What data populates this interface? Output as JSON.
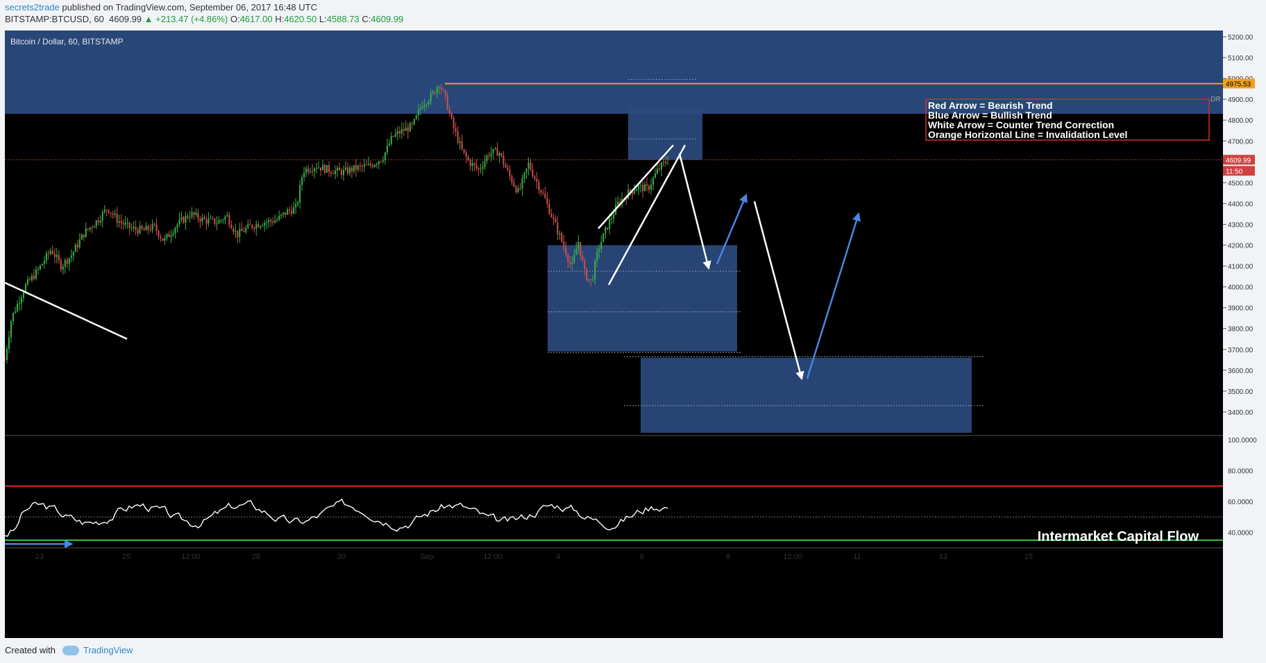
{
  "header": {
    "user": "secrets2trade",
    "published_text": " published on TradingView.com, September 06, 2017 16:48 UTC",
    "symbol": "BITSTAMP:BTCUSD, 60",
    "last": "4609.99",
    "change": "▲ +213.47 (+4.86%)",
    "open_label": "O:",
    "open": "4617.00",
    "high_label": "H:",
    "high": "4620.50",
    "low_label": "L:",
    "low": "4588.73",
    "close_label": "C:",
    "close": "4609.99"
  },
  "chart_data": {
    "type": "candlestick",
    "title": "Bitcoin / Dollar, 60, BITSTAMP",
    "ylim": [
      3300,
      5230
    ],
    "y_ticks": [
      "5200.00",
      "5100.00",
      "5000.00",
      "4900.00",
      "4800.00",
      "4700.00",
      "4600.00",
      "4500.00",
      "4400.00",
      "4300.00",
      "4200.00",
      "4100.00",
      "4000.00",
      "3900.00",
      "3800.00",
      "3700.00",
      "3600.00",
      "3500.00",
      "3400.00"
    ],
    "x_ticks": [
      "23",
      "25",
      "12:00",
      "28",
      "30",
      "Sep",
      "12:00",
      "4",
      "6",
      "8",
      "12:00",
      "11",
      "13",
      "15"
    ],
    "price_trace": [
      [
        0,
        3650
      ],
      [
        0.01,
        3850
      ],
      [
        0.03,
        4000
      ],
      [
        0.05,
        4080
      ],
      [
        0.07,
        4180
      ],
      [
        0.085,
        4100
      ],
      [
        0.1,
        4150
      ],
      [
        0.12,
        4260
      ],
      [
        0.14,
        4320
      ],
      [
        0.155,
        4380
      ],
      [
        0.17,
        4320
      ],
      [
        0.19,
        4280
      ],
      [
        0.21,
        4270
      ],
      [
        0.225,
        4290
      ],
      [
        0.24,
        4220
      ],
      [
        0.26,
        4300
      ],
      [
        0.28,
        4350
      ],
      [
        0.3,
        4320
      ],
      [
        0.32,
        4310
      ],
      [
        0.335,
        4340
      ],
      [
        0.35,
        4250
      ],
      [
        0.37,
        4290
      ],
      [
        0.39,
        4310
      ],
      [
        0.41,
        4320
      ],
      [
        0.425,
        4360
      ],
      [
        0.44,
        4380
      ],
      [
        0.45,
        4560
      ],
      [
        0.47,
        4580
      ],
      [
        0.49,
        4560
      ],
      [
        0.51,
        4550
      ],
      [
        0.53,
        4570
      ],
      [
        0.55,
        4580
      ],
      [
        0.57,
        4620
      ],
      [
        0.585,
        4720
      ],
      [
        0.6,
        4750
      ],
      [
        0.615,
        4770
      ],
      [
        0.63,
        4880
      ],
      [
        0.645,
        4920
      ],
      [
        0.655,
        4980
      ],
      [
        0.665,
        4900
      ],
      [
        0.675,
        4780
      ],
      [
        0.69,
        4650
      ],
      [
        0.7,
        4600
      ],
      [
        0.715,
        4560
      ],
      [
        0.73,
        4640
      ],
      [
        0.745,
        4650
      ],
      [
        0.76,
        4540
      ],
      [
        0.775,
        4450
      ],
      [
        0.79,
        4590
      ],
      [
        0.8,
        4520
      ],
      [
        0.815,
        4420
      ],
      [
        0.83,
        4300
      ],
      [
        0.845,
        4180
      ],
      [
        0.855,
        4090
      ],
      [
        0.865,
        4220
      ],
      [
        0.875,
        4060
      ],
      [
        0.885,
        4020
      ],
      [
        0.895,
        4180
      ],
      [
        0.91,
        4300
      ],
      [
        0.925,
        4400
      ],
      [
        0.94,
        4450
      ],
      [
        0.955,
        4480
      ],
      [
        0.97,
        4470
      ],
      [
        0.985,
        4560
      ],
      [
        1.0,
        4610
      ]
    ],
    "current_price": "4609.99",
    "countdown": "11:50",
    "invalidation_level": "4975.53",
    "invalidation_tag": "DR",
    "zones": [
      {
        "top": 5230,
        "bottom": 4830
      },
      {
        "top": 4860,
        "bottom": 4610
      },
      {
        "top": 4200,
        "bottom": 3690
      },
      {
        "top": 3660,
        "bottom": 3300
      }
    ],
    "legend": [
      "Red Arrow = Bearish Trend",
      "Blue Arrow = Bullish Trend",
      "White Arrow = Counter Trend Correction",
      "Orange Horizontal Line = Invalidation Level"
    ],
    "indicator": {
      "title": "Intermarket Capital Flow",
      "ylim": [
        30,
        100
      ],
      "y_ticks": [
        "100.0000",
        "80.0000",
        "60.0000",
        "40.0000"
      ],
      "upper_level": 70,
      "lower_level": 35,
      "mid_level": 50
    }
  },
  "footer": {
    "created_with": "Created with",
    "brand": "TradingView"
  },
  "colors": {
    "background": "#000000",
    "zone": "#2a4a7e",
    "up": "#3cb04a",
    "down": "#d0504c",
    "invalidation": "#f0a020",
    "bullish_arrow": "#4a86e0",
    "correction_arrow": "#ffffff"
  }
}
